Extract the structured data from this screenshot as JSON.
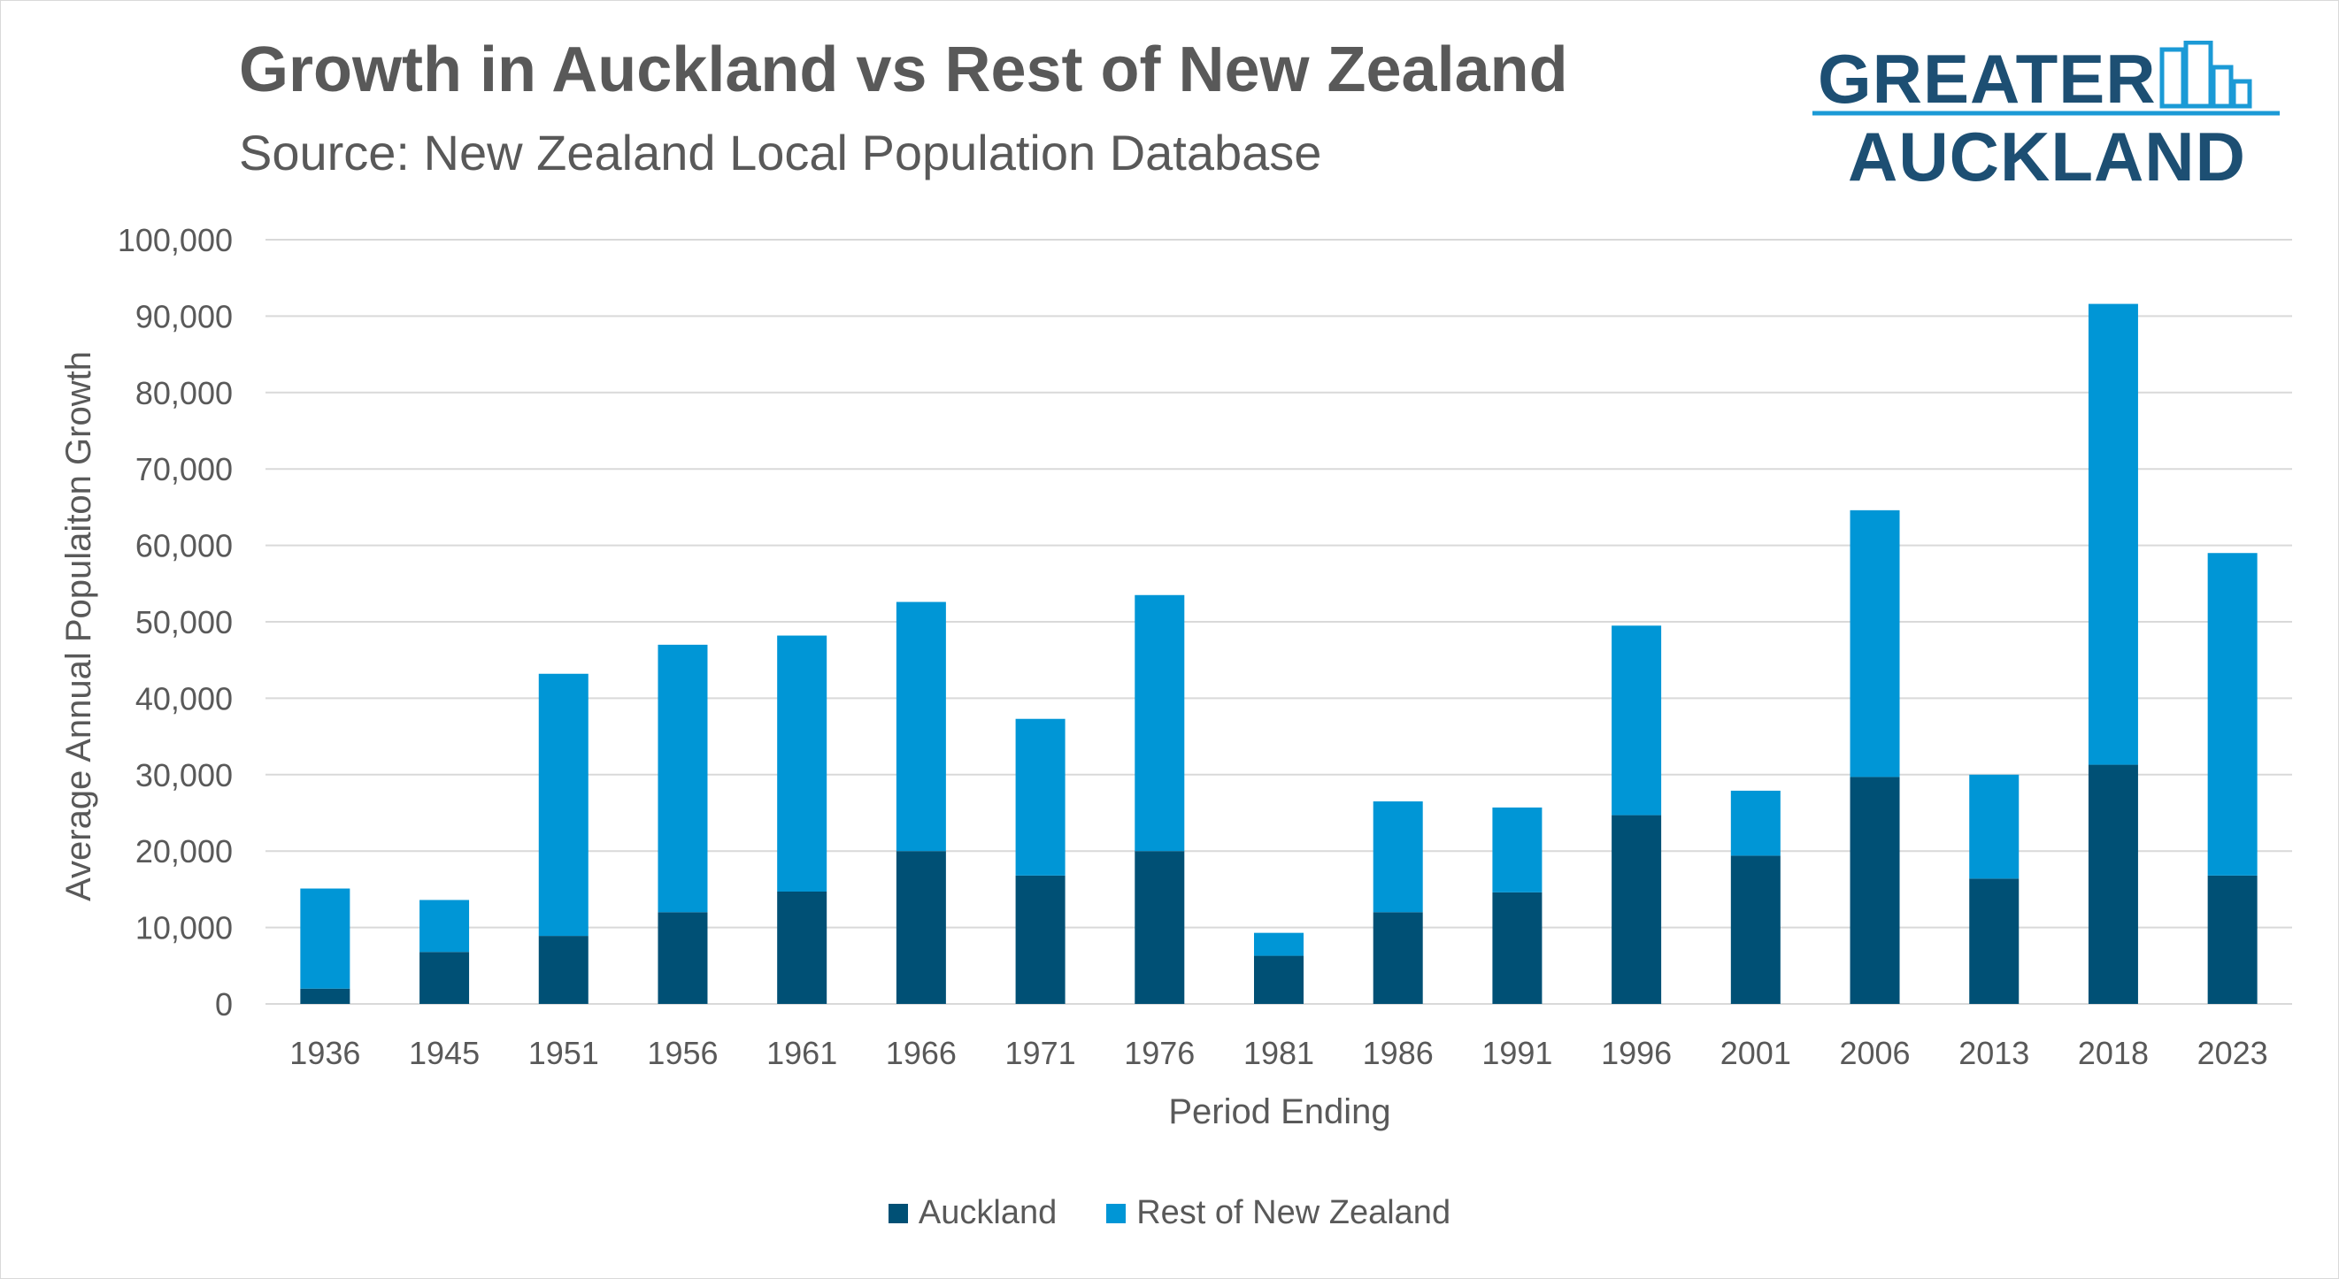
{
  "header": {
    "title": "Growth in Auckland vs Rest of New Zealand",
    "subtitle": "Source: New Zealand Local Population Database"
  },
  "logo": {
    "line1": "GREATER",
    "line2": "AUCKLAND"
  },
  "colors": {
    "auckland": "#005075",
    "rest": "#0096d6",
    "grid": "#d9d9d9",
    "text": "#595959",
    "logo_text": "#1d4f73",
    "logo_accent": "#1b9ad6"
  },
  "chart_data": {
    "type": "bar",
    "stacked": true,
    "xlabel": "Period Ending",
    "ylabel": "Average Annual Populaiton Growth",
    "ylim": [
      0,
      100000
    ],
    "yticks": [
      0,
      10000,
      20000,
      30000,
      40000,
      50000,
      60000,
      70000,
      80000,
      90000,
      100000
    ],
    "ytick_labels": [
      "0",
      "10,000",
      "20,000",
      "30,000",
      "40,000",
      "50,000",
      "60,000",
      "70,000",
      "80,000",
      "90,000",
      "100,000"
    ],
    "grid": true,
    "legend_position": "bottom",
    "categories": [
      "1936",
      "1945",
      "1951",
      "1956",
      "1961",
      "1966",
      "1971",
      "1976",
      "1981",
      "1986",
      "1991",
      "1996",
      "2001",
      "2006",
      "2013",
      "2018",
      "2023"
    ],
    "series": [
      {
        "name": "Auckland",
        "values": [
          2000,
          6800,
          8900,
          12000,
          14700,
          20000,
          16800,
          20000,
          6300,
          12000,
          14600,
          24700,
          19400,
          29700,
          16400,
          31300,
          16800
        ]
      },
      {
        "name": "Rest of New Zealand",
        "values": [
          13100,
          6800,
          34300,
          35000,
          33500,
          32600,
          20500,
          33500,
          3000,
          14500,
          11100,
          24800,
          8500,
          34900,
          13600,
          60300,
          42200
        ]
      }
    ]
  }
}
